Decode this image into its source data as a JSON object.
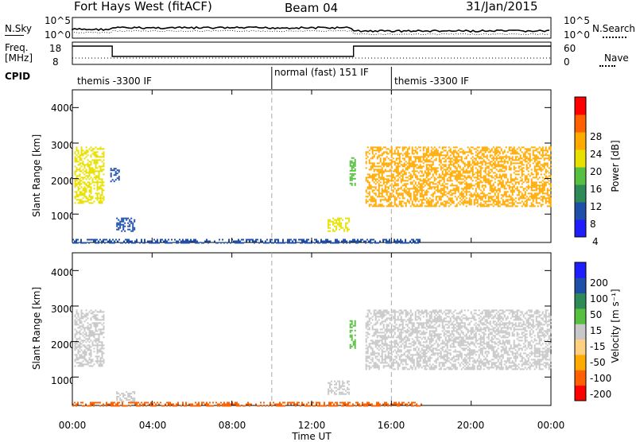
{
  "header": {
    "station": "Fort Hays West (fitACF)",
    "beam": "Beam 04",
    "date": "31/Jan/2015"
  },
  "strip": {
    "nsky_label": "N.Sky",
    "nsearch_label": "N.Search",
    "nsky_ticks": [
      "10^5",
      "10^0"
    ],
    "nsky_ticks_right": [
      "10^5",
      "10^0"
    ],
    "freq_label": "Freq.",
    "freq_unit": "[MHz]",
    "freq_ticks": [
      "18",
      "8"
    ],
    "nave_label": "Nave",
    "nave_ticks": [
      "60",
      "0"
    ],
    "cpid_label": "CPID",
    "cpid_segments": [
      {
        "label": "themis -3300 IF",
        "start": 0,
        "end": 10
      },
      {
        "label": "normal (fast) 151 IF",
        "start": 10,
        "end": 16
      },
      {
        "label": "themis -3300 IF",
        "start": 16,
        "end": 24
      }
    ]
  },
  "chart_data": [
    {
      "type": "heatmap",
      "name": "power",
      "ylabel": "Slant Range [km]",
      "xlabel": "Time UT",
      "xlim": [
        0,
        24
      ],
      "ylim": [
        200,
        4500
      ],
      "yticks": [
        "1000",
        "2000",
        "3000",
        "4000"
      ],
      "xticks": [
        "00:00",
        "04:00",
        "08:00",
        "12:00",
        "16:00",
        "20:00",
        "00:00"
      ],
      "colorbar_label": "Power [dB]",
      "colorbar_ticks": [
        "28",
        "24",
        "20",
        "16",
        "12",
        "8",
        "4"
      ],
      "colorbar_range": [
        0,
        32
      ],
      "colors": [
        "#1e1eff",
        "#1f4fa8",
        "#2e8b57",
        "#58c040",
        "#e8e000",
        "#ffaa00",
        "#ff6000",
        "#ff0000"
      ],
      "regions": [
        {
          "t0": 0.1,
          "t1": 1.6,
          "r0": 1300,
          "r1": 2900,
          "level": 16
        },
        {
          "t0": 1.9,
          "t1": 2.3,
          "r0": 1900,
          "r1": 2300,
          "level": 6
        },
        {
          "t0": 2.2,
          "t1": 3.1,
          "r0": 500,
          "r1": 900,
          "level": 6
        },
        {
          "t0": 12.8,
          "t1": 13.9,
          "r0": 500,
          "r1": 900,
          "level": 18
        },
        {
          "t0": 13.9,
          "t1": 14.2,
          "r0": 1800,
          "r1": 2600,
          "level": 14
        },
        {
          "t0": 14.7,
          "t1": 24,
          "r0": 1200,
          "r1": 2900,
          "level": 20
        },
        {
          "t0": 0,
          "t1": 17.5,
          "r0": 200,
          "r1": 300,
          "level": 6
        }
      ]
    },
    {
      "type": "heatmap",
      "name": "velocity",
      "ylabel": "Slant Range [km]",
      "xlabel": "Time UT",
      "xlim": [
        0,
        24
      ],
      "ylim": [
        200,
        4500
      ],
      "yticks": [
        "1000",
        "2000",
        "3000",
        "4000"
      ],
      "xticks": [
        "00:00",
        "04:00",
        "08:00",
        "12:00",
        "16:00",
        "20:00",
        "00:00"
      ],
      "colorbar_label": "Velocity [m s⁻¹]",
      "colorbar_ticks": [
        "200",
        "100",
        "50",
        "15",
        "-15",
        "-50",
        "-100",
        "-200"
      ],
      "colorbar_range": [
        -250,
        250
      ],
      "colors": [
        "#ff0000",
        "#ff6000",
        "#ffaa00",
        "#ffd080",
        "#c8c8c8",
        "#58c040",
        "#2e8b57",
        "#1f4fa8",
        "#1e1eff"
      ],
      "regions": [
        {
          "t0": 0.1,
          "t1": 1.6,
          "r0": 1300,
          "r1": 2900,
          "level": 0
        },
        {
          "t0": 2.2,
          "t1": 3.1,
          "r0": 300,
          "r1": 600,
          "level": 0
        },
        {
          "t0": 12.8,
          "t1": 13.9,
          "r0": 500,
          "r1": 900,
          "level": 0
        },
        {
          "t0": 13.9,
          "t1": 14.2,
          "r0": 1800,
          "r1": 2600,
          "level": 40
        },
        {
          "t0": 14.7,
          "t1": 24,
          "r0": 1200,
          "r1": 2900,
          "level": 0
        },
        {
          "t0": 0,
          "t1": 17.5,
          "r0": 200,
          "r1": 300,
          "level": -60
        }
      ]
    }
  ]
}
